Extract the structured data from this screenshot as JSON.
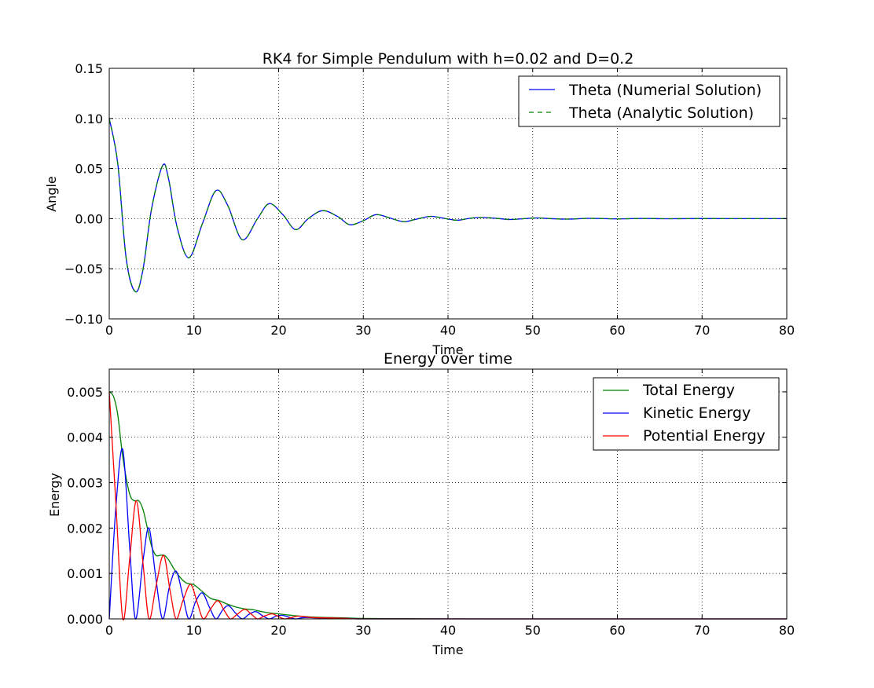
{
  "chart_data": [
    {
      "type": "line",
      "title": "RK4 for Simple Pendulum with h=0.02 and D=0.2",
      "xlabel": "Time",
      "ylabel": "Angle",
      "xlim": [
        0,
        80
      ],
      "ylim": [
        -0.1,
        0.15
      ],
      "xticks": [
        0,
        10,
        20,
        30,
        40,
        50,
        60,
        70,
        80
      ],
      "yticks": [
        -0.1,
        -0.05,
        0.0,
        0.05,
        0.1,
        0.15
      ],
      "xtick_labels": [
        "0",
        "10",
        "20",
        "30",
        "40",
        "50",
        "60",
        "70",
        "80"
      ],
      "ytick_labels": [
        "−0.10",
        "−0.05",
        "0.00",
        "0.05",
        "0.10",
        "0.15"
      ],
      "grid": true,
      "legend_position": "top-right",
      "series": [
        {
          "name": "Theta (Numerial Solution)",
          "color": "#0000ff",
          "style": "solid",
          "x": [
            0,
            1,
            2,
            3.1,
            4,
            5,
            6.3,
            7,
            8,
            9.4,
            11,
            12.6,
            14,
            15.7,
            17.5,
            18.9,
            20.5,
            22,
            23.5,
            25.2,
            27,
            28.4,
            30,
            31.5,
            33,
            34.7,
            36,
            37.8,
            39,
            41,
            42.5,
            44,
            46,
            47.3,
            49,
            50.5,
            52,
            54,
            56.7,
            60,
            63,
            66,
            70,
            75,
            80
          ],
          "y": [
            0.1,
            0.055,
            -0.04,
            -0.073,
            -0.05,
            0.01,
            0.053,
            0.04,
            -0.008,
            -0.039,
            -0.005,
            0.028,
            0.013,
            -0.021,
            0.0,
            0.015,
            0.004,
            -0.011,
            0.0,
            0.008,
            0.002,
            -0.006,
            -0.002,
            0.004,
            0.001,
            -0.003,
            -0.001,
            0.0022,
            0.0012,
            -0.0016,
            0.0002,
            0.0012,
            0.0001,
            -0.0009,
            0.0,
            0.0007,
            0.0001,
            -0.0005,
            0.0003,
            -0.0002,
            0.0002,
            -0.0001,
            0.0001,
            0.0,
            0.0
          ]
        },
        {
          "name": "Theta (Analytic Solution)",
          "color": "#008000",
          "style": "dashed",
          "x": [
            0,
            1,
            2,
            3.1,
            4,
            5,
            6.3,
            7,
            8,
            9.4,
            11,
            12.6,
            14,
            15.7,
            17.5,
            18.9,
            20.5,
            22,
            23.5,
            25.2,
            27,
            28.4,
            30,
            31.5,
            33,
            34.7,
            36,
            37.8,
            39,
            41,
            42.5,
            44,
            46,
            47.3,
            49,
            50.5,
            52,
            54,
            56.7,
            60,
            63,
            66,
            70,
            75,
            80
          ],
          "y": [
            0.1,
            0.055,
            -0.04,
            -0.073,
            -0.05,
            0.01,
            0.053,
            0.04,
            -0.008,
            -0.039,
            -0.005,
            0.028,
            0.013,
            -0.021,
            0.0,
            0.015,
            0.004,
            -0.011,
            0.0,
            0.008,
            0.002,
            -0.006,
            -0.002,
            0.004,
            0.001,
            -0.003,
            -0.001,
            0.0022,
            0.0012,
            -0.0016,
            0.0002,
            0.0012,
            0.0001,
            -0.0009,
            0.0,
            0.0007,
            0.0001,
            -0.0005,
            0.0003,
            -0.0002,
            0.0002,
            -0.0001,
            0.0001,
            0.0,
            0.0
          ]
        }
      ]
    },
    {
      "type": "line",
      "title": "Energy over time",
      "xlabel": "Time",
      "ylabel": "Energy",
      "xlim": [
        0,
        80
      ],
      "ylim": [
        0,
        0.0055
      ],
      "xticks": [
        0,
        10,
        20,
        30,
        40,
        50,
        60,
        70,
        80
      ],
      "yticks": [
        0.0,
        0.001,
        0.002,
        0.003,
        0.004,
        0.005
      ],
      "xtick_labels": [
        "0",
        "10",
        "20",
        "30",
        "40",
        "50",
        "60",
        "70",
        "80"
      ],
      "ytick_labels": [
        "0.000",
        "0.001",
        "0.002",
        "0.003",
        "0.004",
        "0.005"
      ],
      "grid": true,
      "legend_position": "top-right",
      "series": [
        {
          "name": "Total Energy",
          "color": "#008000",
          "x": [
            0,
            0.5,
            1,
            1.5,
            2,
            2.5,
            3,
            3.5,
            4,
            4.5,
            5,
            5.5,
            6,
            6.5,
            7,
            8,
            9,
            10,
            11,
            12,
            13,
            14,
            15,
            16,
            17,
            18,
            19,
            20,
            22,
            24,
            26,
            28,
            30,
            35,
            40,
            50,
            60,
            70,
            80
          ],
          "y": [
            0.005,
            0.0049,
            0.0045,
            0.0037,
            0.0031,
            0.0027,
            0.0026,
            0.0026,
            0.0024,
            0.002,
            0.0016,
            0.0014,
            0.0014,
            0.0014,
            0.0013,
            0.001,
            0.0008,
            0.00075,
            0.0006,
            0.00045,
            0.0004,
            0.00032,
            0.00026,
            0.00022,
            0.0002,
            0.00016,
            0.00013,
            0.00011,
            7e-05,
            4e-05,
            3e-05,
            2e-05,
            1e-05,
            5e-06,
            2e-06,
            0.0,
            0.0,
            0.0,
            0.0
          ]
        },
        {
          "name": "Kinetic Energy",
          "color": "#0000ff",
          "x": [
            0,
            0.8,
            1.6,
            2.4,
            3.1,
            4,
            4.7,
            5.5,
            6.3,
            7.1,
            7.9,
            8.7,
            9.4,
            10.2,
            11,
            11.8,
            12.6,
            13.4,
            14.1,
            14.9,
            15.7,
            16.5,
            17.3,
            18.1,
            18.9,
            19.7,
            20.4,
            21.2,
            22,
            23,
            25,
            28,
            30,
            40,
            60,
            80
          ],
          "y": [
            0.0,
            0.0025,
            0.00373,
            0.0016,
            0.0,
            0.0013,
            0.002,
            0.0009,
            0.0,
            0.0007,
            0.00105,
            0.0005,
            0.0,
            0.00038,
            0.00057,
            0.00027,
            0.0,
            0.0002,
            0.00029,
            0.00013,
            0.0,
            0.0001,
            0.00016,
            7e-05,
            0.0,
            6e-05,
            8e-05,
            4e-05,
            0.0,
            3e-05,
            2e-05,
            1e-05,
            0.0,
            0.0,
            0.0,
            0.0
          ]
        },
        {
          "name": "Potential Energy",
          "color": "#ff0000",
          "x": [
            0,
            0.8,
            1.6,
            2.4,
            3.2,
            4,
            4.7,
            5.5,
            6.4,
            7.2,
            7.9,
            8.7,
            9.6,
            10.4,
            11.1,
            11.9,
            12.8,
            13.6,
            14.3,
            15.1,
            16,
            16.8,
            17.5,
            18.3,
            19.2,
            20,
            20.7,
            21.5,
            22.4,
            24,
            26,
            28,
            30,
            40,
            60,
            80
          ],
          "y": [
            0.005,
            0.0025,
            0.0,
            0.0013,
            0.0026,
            0.0012,
            0.0,
            0.0007,
            0.0014,
            0.0006,
            0.0,
            0.0004,
            0.00076,
            0.00035,
            0.0,
            0.0002,
            0.0004,
            0.00018,
            0.0,
            0.0001,
            0.00021,
            0.0001,
            0.0,
            6e-05,
            0.00011,
            5e-05,
            0.0,
            3e-05,
            6e-05,
            3e-05,
            2e-05,
            1e-05,
            0.0,
            0.0,
            0.0,
            0.0
          ]
        }
      ]
    }
  ]
}
